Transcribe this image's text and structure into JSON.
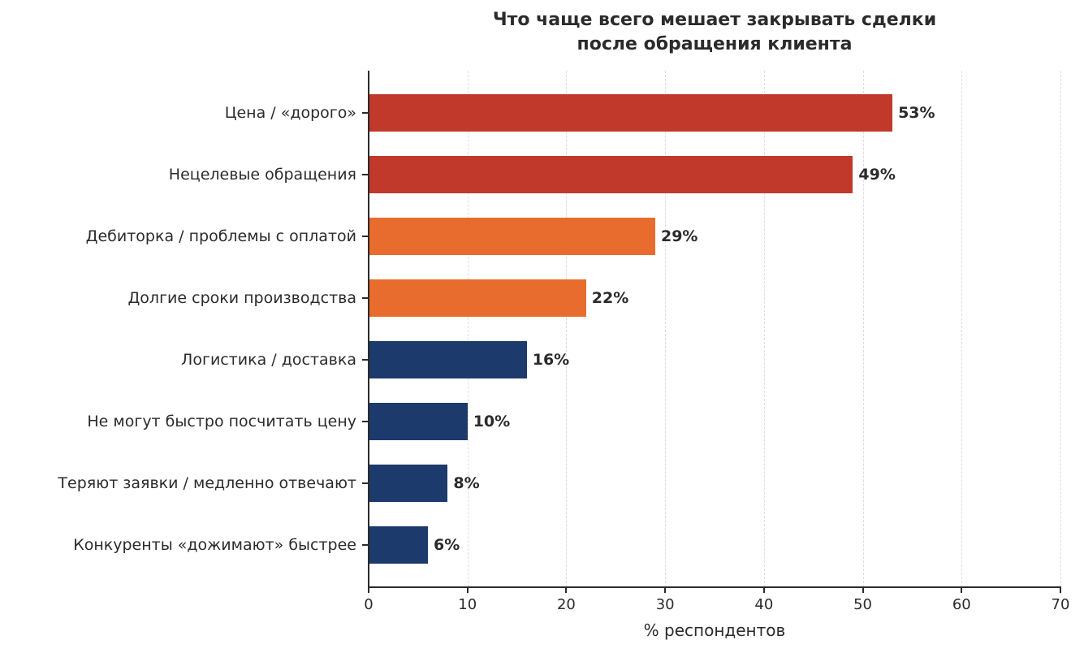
{
  "chart_data": {
    "type": "bar",
    "orientation": "horizontal",
    "title": "Что чаще всего мешает закрывать сделки\nпосле обращения клиента",
    "title_lines": [
      "Что чаще всего мешает закрывать сделки",
      "после обращения клиента"
    ],
    "xlabel": "% респондентов",
    "ylabel": "",
    "xlim": [
      0,
      70
    ],
    "xticks": [
      "0",
      "10",
      "20",
      "30",
      "40",
      "50",
      "60",
      "70"
    ],
    "grid": "vertical dashed",
    "categories": [
      "Цена / «дорого»",
      "Нецелевые обращения",
      "Дебиторка / проблемы с оплатой",
      "Долгие сроки производства",
      "Логистика / доставка",
      "Не могут быстро посчитать цену",
      "Теряют заявки / медленно отвечают",
      "Конкуренты «дожимают» быстрее"
    ],
    "values": [
      53,
      49,
      29,
      22,
      16,
      10,
      8,
      6
    ],
    "value_labels": [
      "53%",
      "49%",
      "29%",
      "22%",
      "16%",
      "10%",
      "8%",
      "6%"
    ],
    "colors": [
      "#c0392b",
      "#c0392b",
      "#e86c2e",
      "#e86c2e",
      "#1c3a6b",
      "#1c3a6b",
      "#1c3a6b",
      "#1c3a6b"
    ]
  }
}
